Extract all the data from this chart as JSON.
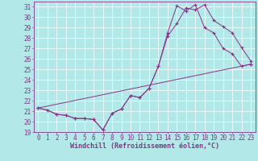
{
  "xlabel": "Windchill (Refroidissement éolien,°C)",
  "background_color": "#b2e8e8",
  "line_color": "#883388",
  "grid_color": "#ffffff",
  "xlim": [
    -0.5,
    23.5
  ],
  "ylim": [
    19,
    31.5
  ],
  "yticks": [
    19,
    20,
    21,
    22,
    23,
    24,
    25,
    26,
    27,
    28,
    29,
    30,
    31
  ],
  "xticks": [
    0,
    1,
    2,
    3,
    4,
    5,
    6,
    7,
    8,
    9,
    10,
    11,
    12,
    13,
    14,
    15,
    16,
    17,
    18,
    19,
    20,
    21,
    22,
    23
  ],
  "line1_x": [
    0,
    1,
    2,
    3,
    4,
    5,
    6,
    7,
    8,
    9,
    10,
    11,
    12,
    13,
    14,
    15,
    16,
    17,
    18,
    19,
    20,
    21,
    22,
    23
  ],
  "line1_y": [
    21.3,
    21.1,
    20.7,
    20.6,
    20.3,
    20.3,
    20.2,
    19.2,
    20.8,
    21.2,
    22.5,
    22.3,
    23.2,
    25.3,
    28.2,
    29.4,
    30.9,
    30.7,
    31.2,
    29.7,
    29.1,
    28.5,
    27.1,
    25.8
  ],
  "line2_x": [
    0,
    1,
    2,
    3,
    4,
    5,
    6,
    7,
    8,
    9,
    10,
    11,
    12,
    13,
    14,
    15,
    16,
    17,
    18,
    19,
    20,
    21,
    22,
    23
  ],
  "line2_y": [
    21.3,
    21.1,
    20.7,
    20.6,
    20.3,
    20.3,
    20.2,
    19.2,
    20.8,
    21.2,
    22.5,
    22.3,
    23.2,
    25.3,
    28.5,
    31.1,
    30.6,
    31.2,
    29.0,
    28.5,
    27.0,
    26.5,
    25.3,
    25.5
  ],
  "line3_x": [
    0,
    23
  ],
  "line3_y": [
    21.3,
    25.5
  ],
  "xlabel_fontsize": 6,
  "tick_fontsize": 5.5,
  "marker": "+",
  "markersize": 3.0,
  "linewidth": 0.7
}
